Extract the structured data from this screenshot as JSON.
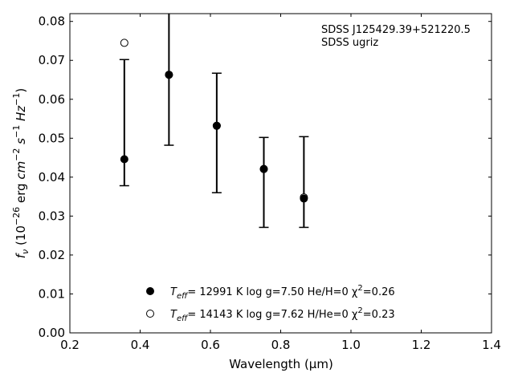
{
  "chart_data": {
    "type": "scatter",
    "xlabel": "Wavelength (μm)",
    "ylabel": "f_ν (10^-26 erg cm^-2 s^-1 Hz^-1)",
    "xlim": [
      0.2,
      1.4
    ],
    "ylim": [
      0.0,
      0.082
    ],
    "xticks": [
      0.2,
      0.4,
      0.6,
      0.8,
      1.0,
      1.2,
      1.4
    ],
    "xtick_labels": [
      "0.2",
      "0.4",
      "0.6",
      "0.8",
      "1.0",
      "1.2",
      "1.4"
    ],
    "yticks": [
      0.0,
      0.01,
      0.02,
      0.03,
      0.04,
      0.05,
      0.06,
      0.07,
      0.08
    ],
    "ytick_labels": [
      "0.00",
      "0.01",
      "0.02",
      "0.03",
      "0.04",
      "0.05",
      "0.06",
      "0.07",
      "0.08"
    ],
    "grid": false,
    "annotations": [
      "SDSS J125429.39+521220.5",
      "SDSS ugriz"
    ],
    "observed": {
      "x": [
        0.355,
        0.482,
        0.618,
        0.752,
        0.866
      ],
      "y": [
        0.0446,
        0.0663,
        0.0532,
        0.0421,
        0.0345
      ],
      "yerr_low": [
        0.0378,
        0.0482,
        0.036,
        0.0271,
        0.0271
      ],
      "yerr_high": [
        0.0702,
        0.083,
        0.0667,
        0.0502,
        0.0504
      ]
    },
    "series": [
      {
        "marker": "filled-circle",
        "label_prefix": "T",
        "label_sub": "eff",
        "label_main": "= 12991 K  log g=7.50  He/H=0  χ",
        "label_sup": "2",
        "label_tail": "=0.26",
        "x": [
          0.355,
          0.482,
          0.618,
          0.752,
          0.866
        ],
        "y": [
          0.0446,
          0.0663,
          0.0532,
          0.0421,
          0.0345
        ]
      },
      {
        "marker": "open-circle",
        "label_prefix": "T",
        "label_sub": "eff",
        "label_main": "= 14143 K  log g=7.62  H/He=0  χ",
        "label_sup": "2",
        "label_tail": "=0.23",
        "x": [
          0.355,
          0.482,
          0.618,
          0.752,
          0.866
        ],
        "y": [
          0.0745,
          0.0663,
          0.0532,
          0.0421,
          0.0348
        ]
      }
    ],
    "legend_position": "lower-center",
    "colors": {
      "axis": "#000000",
      "marker": "#000000",
      "background": "#ffffff"
    }
  }
}
